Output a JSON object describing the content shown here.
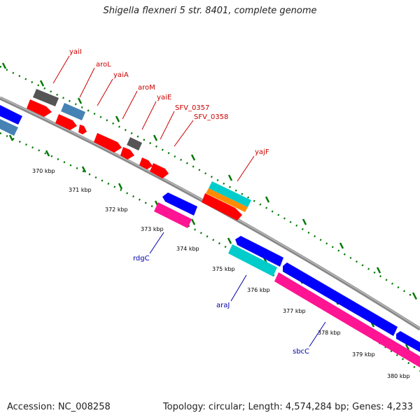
{
  "title": "Shigella flexneri 5 str. 8401, complete genome",
  "footer": {
    "accession": "Accession: NC_008258",
    "summary": "Topology: circular; Length: 4,574,284 bp; Genes: 4,233"
  },
  "ticks": [
    "370 kbp",
    "371 kbp",
    "372 kbp",
    "373 kbp",
    "374 kbp",
    "375 kbp",
    "376 kbp",
    "377 kbp",
    "378 kbp",
    "379 kbp",
    "380 kbp"
  ],
  "genes_forward": [
    "yaiI",
    "aroL",
    "yaiA",
    "aroM",
    "yaiE",
    "SFV_0357",
    "SFV_0358",
    "yajF"
  ],
  "genes_reverse": [
    "rdgC",
    "araJ",
    "sbcC"
  ],
  "colors": {
    "forward_label": "#cc0000",
    "reverse_label": "#0000aa",
    "backbone": "#888888",
    "tick_dots": "#007700",
    "red": "#ff0000",
    "gray": "#555555",
    "steelblue": "#4682b4",
    "blue": "#0000ff",
    "magenta": "#ff1493",
    "cyan": "#00cccc",
    "orange": "#ff8c00"
  }
}
